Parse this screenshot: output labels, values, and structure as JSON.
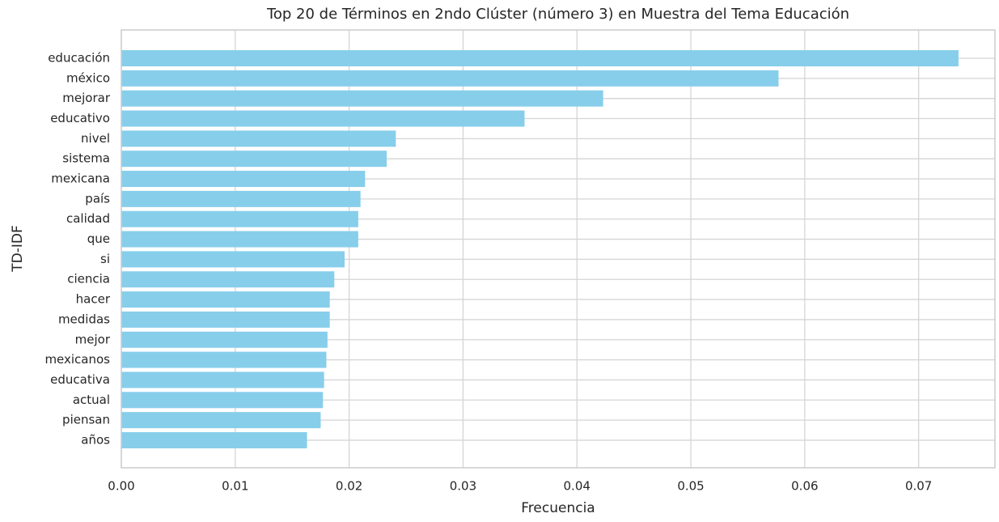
{
  "chart_data": {
    "type": "barh",
    "title": "Top 20 de Términos en 2ndo Clúster (número 3) en Muestra del Tema Educación",
    "xlabel": "Frecuencia",
    "ylabel": "TD-IDF",
    "categories": [
      "educación",
      "méxico",
      "mejorar",
      "educativo",
      "nivel",
      "sistema",
      "mexicana",
      "país",
      "calidad",
      "que",
      "si",
      "ciencia",
      "hacer",
      "medidas",
      "mejor",
      "mexicanos",
      "educativa",
      "actual",
      "piensan",
      "años"
    ],
    "values": [
      0.0735,
      0.0577,
      0.0423,
      0.0354,
      0.0241,
      0.0233,
      0.0214,
      0.021,
      0.0208,
      0.0208,
      0.0196,
      0.0187,
      0.0183,
      0.0183,
      0.0181,
      0.018,
      0.0178,
      0.0177,
      0.0175,
      0.0163
    ],
    "color": "#87ceeb",
    "xlim": [
      0,
      0.0767
    ],
    "xticks": [
      {
        "value": 0,
        "label": "0.00"
      },
      0.01,
      0.02,
      0.03,
      0.04,
      0.05,
      0.06,
      0.07
    ],
    "grid": true
  }
}
